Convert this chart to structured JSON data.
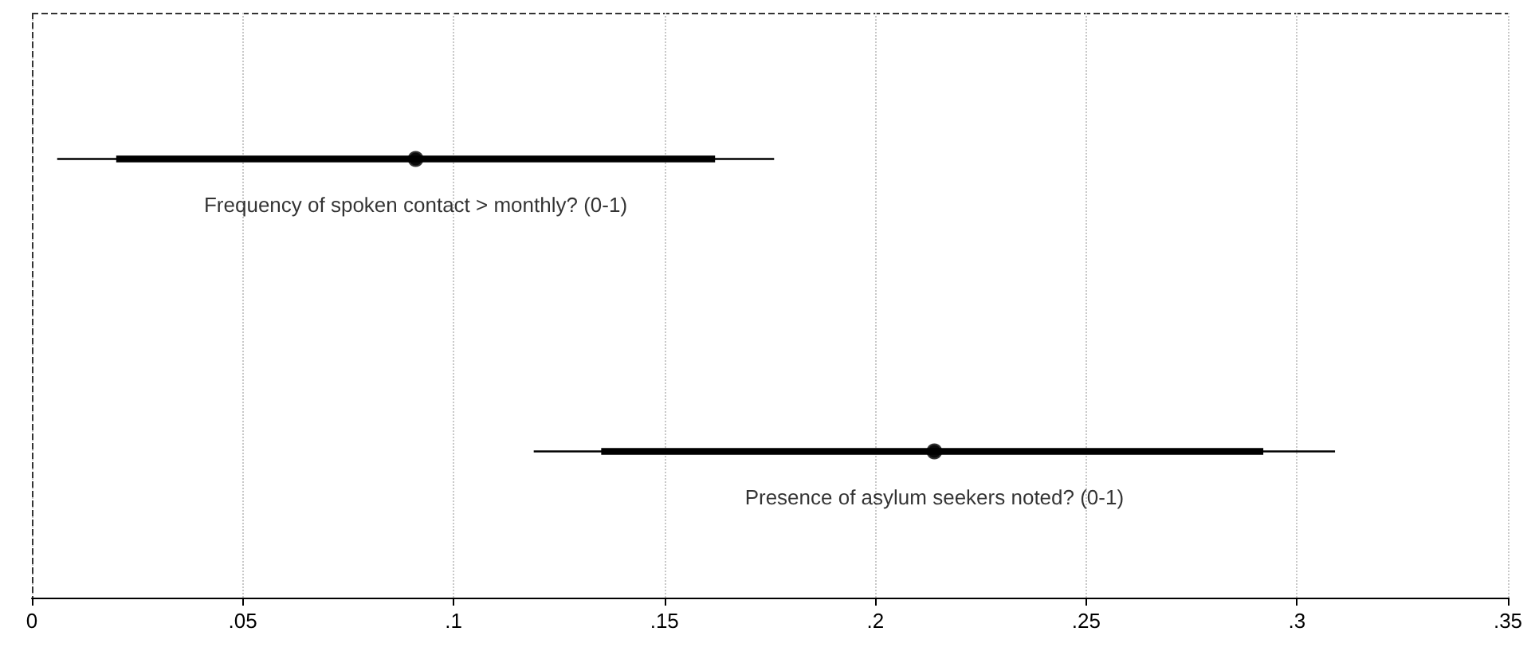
{
  "chart_data": {
    "type": "scatter",
    "orientation": "horizontal",
    "categories": [
      "Frequency of spoken contact > monthly? (0-1)",
      "Presence of asylum seekers noted? (0-1)"
    ],
    "series": [
      {
        "color": "#000000",
        "values": [
          0.091,
          0.214
        ],
        "errors": [
          [
            0.006,
            0.176
          ],
          [
            0.119,
            0.309
          ]
        ]
      },
      {
        "color": "#000000",
        "values": [
          0.091,
          0.214
        ],
        "errors": [
          [
            0.02,
            0.162
          ],
          [
            0.135,
            0.292
          ]
        ]
      }
    ],
    "xlim": [
      0,
      0.35
    ],
    "xticks": [
      0,
      {
        "value": 0.05,
        "label": ".05"
      },
      {
        "value": 0.1,
        "label": ".1"
      },
      {
        "value": 0.15,
        "label": ".15"
      },
      {
        "value": 0.2,
        "label": ".2"
      },
      {
        "value": 0.25,
        "label": ".25"
      },
      {
        "value": 0.3,
        "label": ".3"
      },
      {
        "value": 0.35,
        "label": ".35"
      }
    ],
    "ref_lines": [
      {
        "axis": "x",
        "value": 0,
        "line_style": "dashed"
      }
    ],
    "grid": true,
    "marker": "circle",
    "tick_labels": "x"
  }
}
